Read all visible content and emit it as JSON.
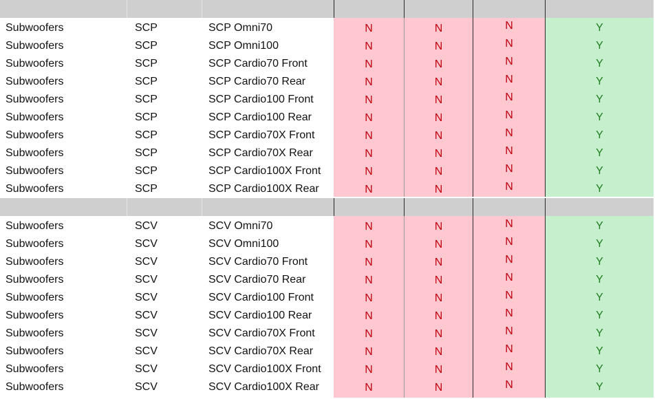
{
  "sections": [
    {
      "rows": [
        {
          "category": "Subwoofers",
          "brand": "SCP",
          "model": "SCP Omni70",
          "v1": "N",
          "v2": "N",
          "v3": "N",
          "v4": "Y"
        },
        {
          "category": "Subwoofers",
          "brand": "SCP",
          "model": "SCP Omni100",
          "v1": "N",
          "v2": "N",
          "v3": "N",
          "v4": "Y"
        },
        {
          "category": "Subwoofers",
          "brand": "SCP",
          "model": "SCP Cardio70 Front",
          "v1": "N",
          "v2": "N",
          "v3": "N",
          "v4": "Y"
        },
        {
          "category": "Subwoofers",
          "brand": "SCP",
          "model": "SCP Cardio70 Rear",
          "v1": "N",
          "v2": "N",
          "v3": "N",
          "v4": "Y"
        },
        {
          "category": "Subwoofers",
          "brand": "SCP",
          "model": "SCP Cardio100 Front",
          "v1": "N",
          "v2": "N",
          "v3": "N",
          "v4": "Y"
        },
        {
          "category": "Subwoofers",
          "brand": "SCP",
          "model": "SCP Cardio100 Rear",
          "v1": "N",
          "v2": "N",
          "v3": "N",
          "v4": "Y"
        },
        {
          "category": "Subwoofers",
          "brand": "SCP",
          "model": "SCP Cardio70X Front",
          "v1": "N",
          "v2": "N",
          "v3": "N",
          "v4": "Y"
        },
        {
          "category": "Subwoofers",
          "brand": "SCP",
          "model": "SCP Cardio70X Rear",
          "v1": "N",
          "v2": "N",
          "v3": "N",
          "v4": "Y"
        },
        {
          "category": "Subwoofers",
          "brand": "SCP",
          "model": "SCP Cardio100X Front",
          "v1": "N",
          "v2": "N",
          "v3": "N",
          "v4": "Y"
        },
        {
          "category": "Subwoofers",
          "brand": "SCP",
          "model": "SCP Cardio100X Rear",
          "v1": "N",
          "v2": "N",
          "v3": "N",
          "v4": "Y"
        }
      ]
    },
    {
      "rows": [
        {
          "category": "Subwoofers",
          "brand": "SCV",
          "model": "SCV Omni70",
          "v1": "N",
          "v2": "N",
          "v3": "N",
          "v4": "Y"
        },
        {
          "category": "Subwoofers",
          "brand": "SCV",
          "model": "SCV Omni100",
          "v1": "N",
          "v2": "N",
          "v3": "N",
          "v4": "Y"
        },
        {
          "category": "Subwoofers",
          "brand": "SCV",
          "model": "SCV Cardio70 Front",
          "v1": "N",
          "v2": "N",
          "v3": "N",
          "v4": "Y"
        },
        {
          "category": "Subwoofers",
          "brand": "SCV",
          "model": "SCV Cardio70 Rear",
          "v1": "N",
          "v2": "N",
          "v3": "N",
          "v4": "Y"
        },
        {
          "category": "Subwoofers",
          "brand": "SCV",
          "model": "SCV Cardio100 Front",
          "v1": "N",
          "v2": "N",
          "v3": "N",
          "v4": "Y"
        },
        {
          "category": "Subwoofers",
          "brand": "SCV",
          "model": "SCV Cardio100 Rear",
          "v1": "N",
          "v2": "N",
          "v3": "N",
          "v4": "Y"
        },
        {
          "category": "Subwoofers",
          "brand": "SCV",
          "model": "SCV Cardio70X Front",
          "v1": "N",
          "v2": "N",
          "v3": "N",
          "v4": "Y"
        },
        {
          "category": "Subwoofers",
          "brand": "SCV",
          "model": "SCV Cardio70X Rear",
          "v1": "N",
          "v2": "N",
          "v3": "N",
          "v4": "Y"
        },
        {
          "category": "Subwoofers",
          "brand": "SCV",
          "model": "SCV Cardio100X Front",
          "v1": "N",
          "v2": "N",
          "v3": "N",
          "v4": "Y"
        },
        {
          "category": "Subwoofers",
          "brand": "SCV",
          "model": "SCV Cardio100X Rear",
          "v1": "N",
          "v2": "N",
          "v3": "N",
          "v4": "Y"
        }
      ]
    }
  ],
  "colors": {
    "separator_gray": "#d0cfcf",
    "no_fill": "#ffc7cf",
    "no_text": "#c0000f",
    "yes_fill": "#c6efce",
    "yes_text": "#1e7d1e"
  }
}
